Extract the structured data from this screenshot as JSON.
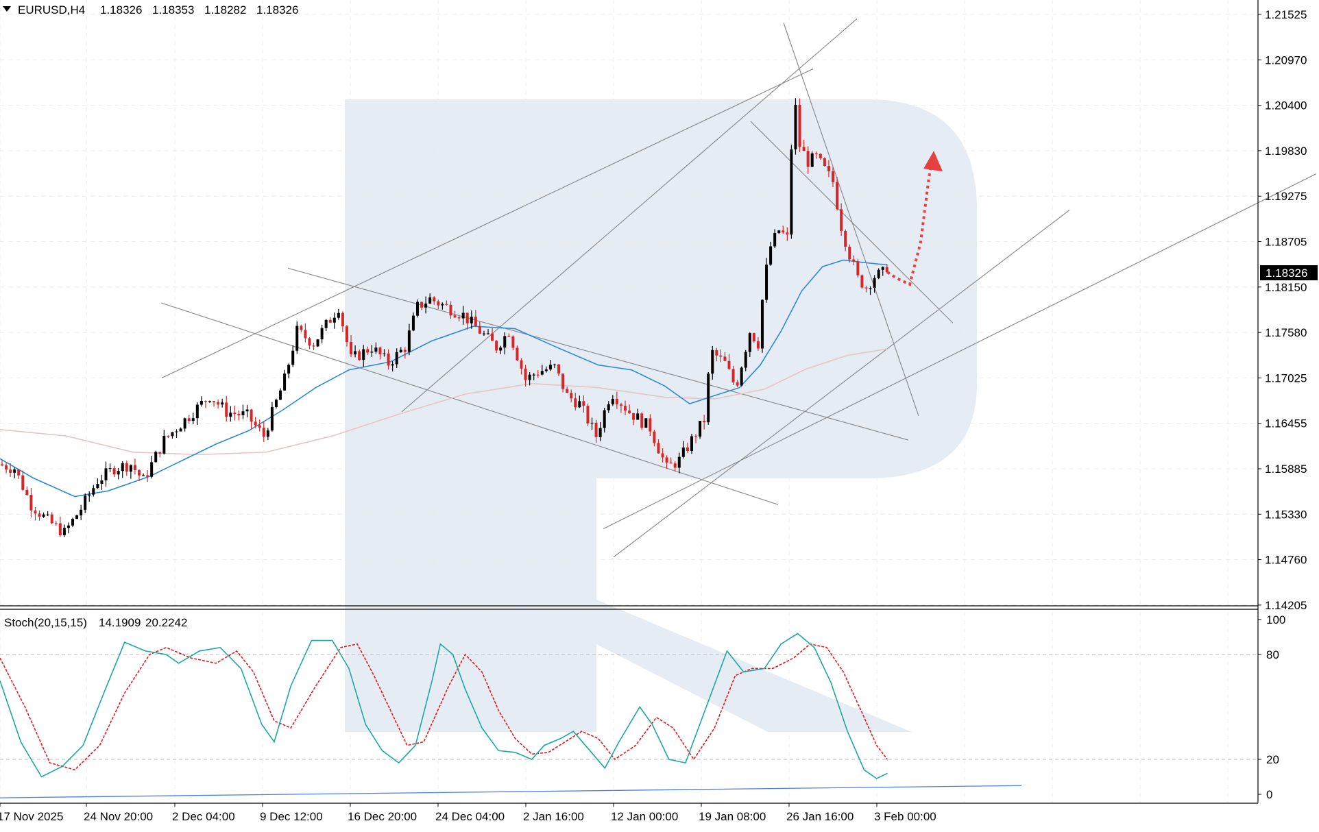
{
  "header": {
    "symbol": "EURUSD,H4",
    "open": "1.18326",
    "high": "1.18353",
    "low": "1.18282",
    "close": "1.18326"
  },
  "indicator": {
    "label": "Stoch(20,15,15)",
    "main_value": "14.1909",
    "signal_value": "20.2242"
  },
  "current_price_label": "1.18326",
  "colors": {
    "bull_candle": "#000000",
    "bear_candle": "#d62728",
    "ma_fast": "#2a8ae0",
    "ma_slow": "#e6c5c5",
    "stoch_main": "#1ba8a0",
    "stoch_signal": "#e8161a",
    "forecast_arrow": "#e84040",
    "trendline": "#8c8c8c",
    "support_line": "#4a7ee8",
    "watermark": "#e6ecf4"
  },
  "chart_data": [
    {
      "type": "candlestick",
      "title": "EURUSD,H4",
      "y_ticks": [
        "1.21525",
        "1.20970",
        "1.20400",
        "1.19830",
        "1.19275",
        "1.18705",
        "1.18150",
        "1.17580",
        "1.17025",
        "1.16455",
        "1.15885",
        "1.15330",
        "1.14760",
        "1.14205"
      ],
      "ylim": [
        1.1421,
        1.2172
      ],
      "x_ticks": [
        "17 Nov 2025",
        "24 Nov 20:00",
        "2 Dec 04:00",
        "9 Dec 12:00",
        "16 Dec 20:00",
        "24 Dec 04:00",
        "2 Jan 16:00",
        "12 Jan 00:00",
        "19 Jan 08:00",
        "26 Jan 16:00",
        "3 Feb 00:00"
      ],
      "grid": true,
      "price_path": [
        [
          0,
          1.1595
        ],
        [
          20,
          1.159
        ],
        [
          40,
          1.1545
        ],
        [
          60,
          1.1525
        ],
        [
          80,
          1.151
        ],
        [
          100,
          1.154
        ],
        [
          120,
          1.1575
        ],
        [
          140,
          1.159
        ],
        [
          160,
          1.1595
        ],
        [
          175,
          1.1575
        ],
        [
          200,
          1.1625
        ],
        [
          215,
          1.164
        ],
        [
          235,
          1.166
        ],
        [
          255,
          1.168
        ],
        [
          275,
          1.166
        ],
        [
          300,
          1.1655
        ],
        [
          320,
          1.163
        ],
        [
          345,
          1.17
        ],
        [
          360,
          1.176
        ],
        [
          380,
          1.1745
        ],
        [
          410,
          1.179
        ],
        [
          425,
          1.1725
        ],
        [
          450,
          1.174
        ],
        [
          470,
          1.172
        ],
        [
          490,
          1.174
        ],
        [
          505,
          1.179
        ],
        [
          520,
          1.18
        ],
        [
          540,
          1.179
        ],
        [
          560,
          1.178
        ],
        [
          580,
          1.176
        ],
        [
          600,
          1.174
        ],
        [
          615,
          1.176
        ],
        [
          635,
          1.17
        ],
        [
          650,
          1.171
        ],
        [
          670,
          1.1715
        ],
        [
          685,
          1.168
        ],
        [
          700,
          1.167
        ],
        [
          720,
          1.163
        ],
        [
          738,
          1.1685
        ],
        [
          760,
          1.166
        ],
        [
          785,
          1.164
        ],
        [
          805,
          1.159
        ],
        [
          820,
          1.16
        ],
        [
          838,
          1.163
        ],
        [
          850,
          1.165
        ],
        [
          858,
          1.1735
        ],
        [
          875,
          1.172
        ],
        [
          888,
          1.169
        ],
        [
          905,
          1.176
        ],
        [
          915,
          1.1745
        ],
        [
          922,
          1.182
        ],
        [
          930,
          1.1865
        ],
        [
          940,
          1.1885
        ],
        [
          950,
          1.1875
        ],
        [
          958,
          1.2055
        ],
        [
          965,
          1.199
        ],
        [
          975,
          1.197
        ],
        [
          985,
          1.1975
        ],
        [
          995,
          1.196
        ],
        [
          1005,
          1.1945
        ],
        [
          1015,
          1.189
        ],
        [
          1025,
          1.1855
        ],
        [
          1035,
          1.1825
        ],
        [
          1045,
          1.1815
        ],
        [
          1055,
          1.1828
        ],
        [
          1068,
          1.1833
        ]
      ],
      "ma_fast": [
        [
          0,
          1.1602
        ],
        [
          40,
          1.1578
        ],
        [
          90,
          1.1555
        ],
        [
          130,
          1.1562
        ],
        [
          180,
          1.158
        ],
        [
          220,
          1.16
        ],
        [
          260,
          1.162
        ],
        [
          300,
          1.1637
        ],
        [
          340,
          1.1662
        ],
        [
          380,
          1.169
        ],
        [
          420,
          1.1712
        ],
        [
          470,
          1.1722
        ],
        [
          520,
          1.1748
        ],
        [
          570,
          1.1766
        ],
        [
          620,
          1.1763
        ],
        [
          670,
          1.174
        ],
        [
          720,
          1.1718
        ],
        [
          760,
          1.1712
        ],
        [
          800,
          1.1692
        ],
        [
          830,
          1.167
        ],
        [
          860,
          1.168
        ],
        [
          890,
          1.169
        ],
        [
          915,
          1.1718
        ],
        [
          940,
          1.176
        ],
        [
          965,
          1.181
        ],
        [
          990,
          1.184
        ],
        [
          1015,
          1.1848
        ],
        [
          1040,
          1.1845
        ],
        [
          1068,
          1.1842
        ]
      ],
      "ma_slow": [
        [
          0,
          1.1638
        ],
        [
          80,
          1.163
        ],
        [
          160,
          1.161
        ],
        [
          240,
          1.1607
        ],
        [
          320,
          1.161
        ],
        [
          400,
          1.163
        ],
        [
          480,
          1.1657
        ],
        [
          560,
          1.1682
        ],
        [
          640,
          1.1695
        ],
        [
          720,
          1.169
        ],
        [
          800,
          1.1678
        ],
        [
          860,
          1.1676
        ],
        [
          920,
          1.1688
        ],
        [
          970,
          1.1713
        ],
        [
          1020,
          1.173
        ],
        [
          1068,
          1.1738
        ]
      ],
      "forecast_path": [
        [
          1068,
          1.1833
        ],
        [
          1080,
          1.1825
        ],
        [
          1095,
          1.1818
        ],
        [
          1108,
          1.187
        ],
        [
          1118,
          1.195
        ],
        [
          1123,
          1.198
        ]
      ]
    },
    {
      "type": "line",
      "title": "Stoch(20,15,15)",
      "y_ticks": [
        "100",
        "80",
        "20",
        "0"
      ],
      "ylim": [
        0,
        100
      ],
      "levels": [
        80,
        20
      ],
      "series": [
        {
          "name": "14.1909",
          "points": [
            [
              0,
              65
            ],
            [
              25,
              30
            ],
            [
              50,
              10
            ],
            [
              75,
              16
            ],
            [
              100,
              28
            ],
            [
              125,
              58
            ],
            [
              150,
              87
            ],
            [
              175,
              82
            ],
            [
              200,
              80
            ],
            [
              215,
              75
            ],
            [
              240,
              82
            ],
            [
              265,
              84
            ],
            [
              290,
              72
            ],
            [
              315,
              40
            ],
            [
              330,
              30
            ],
            [
              350,
              62
            ],
            [
              375,
              88
            ],
            [
              400,
              88
            ],
            [
              420,
              72
            ],
            [
              440,
              40
            ],
            [
              460,
              25
            ],
            [
              480,
              18
            ],
            [
              500,
              28
            ],
            [
              520,
              65
            ],
            [
              530,
              86
            ],
            [
              545,
              80
            ],
            [
              560,
              60
            ],
            [
              580,
              38
            ],
            [
              600,
              25
            ],
            [
              620,
              24
            ],
            [
              640,
              20
            ],
            [
              655,
              28
            ],
            [
              675,
              32
            ],
            [
              690,
              36
            ],
            [
              710,
              25
            ],
            [
              728,
              15
            ],
            [
              745,
              30
            ],
            [
              770,
              50
            ],
            [
              785,
              40
            ],
            [
              805,
              20
            ],
            [
              825,
              18
            ],
            [
              850,
              50
            ],
            [
              875,
              82
            ],
            [
              895,
              70
            ],
            [
              920,
              72
            ],
            [
              940,
              86
            ],
            [
              960,
              92
            ],
            [
              980,
              84
            ],
            [
              1000,
              64
            ],
            [
              1020,
              36
            ],
            [
              1040,
              14
            ],
            [
              1055,
              9
            ],
            [
              1068,
              12
            ]
          ]
        },
        {
          "name": "20.2242",
          "points": [
            [
              0,
              78
            ],
            [
              30,
              50
            ],
            [
              60,
              18
            ],
            [
              90,
              14
            ],
            [
              120,
              28
            ],
            [
              150,
              58
            ],
            [
              180,
              80
            ],
            [
              200,
              84
            ],
            [
              230,
              78
            ],
            [
              260,
              75
            ],
            [
              285,
              82
            ],
            [
              305,
              70
            ],
            [
              330,
              42
            ],
            [
              350,
              38
            ],
            [
              380,
              62
            ],
            [
              410,
              84
            ],
            [
              430,
              86
            ],
            [
              450,
              68
            ],
            [
              470,
              48
            ],
            [
              490,
              28
            ],
            [
              510,
              30
            ],
            [
              540,
              62
            ],
            [
              560,
              80
            ],
            [
              580,
              70
            ],
            [
              600,
              48
            ],
            [
              620,
              32
            ],
            [
              640,
              23
            ],
            [
              660,
              24
            ],
            [
              680,
              30
            ],
            [
              700,
              36
            ],
            [
              720,
              32
            ],
            [
              740,
              20
            ],
            [
              765,
              28
            ],
            [
              790,
              44
            ],
            [
              810,
              38
            ],
            [
              835,
              20
            ],
            [
              860,
              38
            ],
            [
              885,
              68
            ],
            [
              905,
              72
            ],
            [
              930,
              72
            ],
            [
              955,
              78
            ],
            [
              975,
              86
            ],
            [
              995,
              84
            ],
            [
              1015,
              70
            ],
            [
              1040,
              44
            ],
            [
              1055,
              28
            ],
            [
              1068,
              20
            ]
          ]
        }
      ]
    }
  ]
}
